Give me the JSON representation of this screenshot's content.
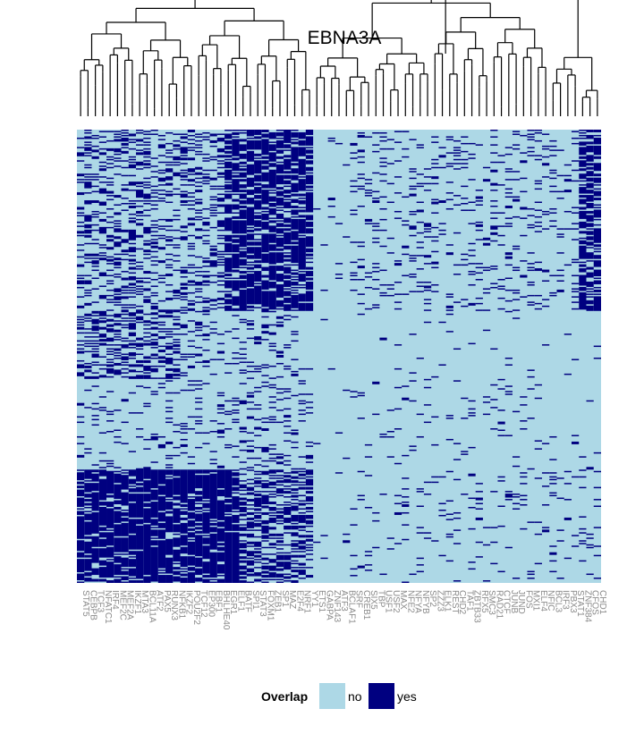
{
  "chart_data": {
    "type": "heatmap",
    "title": "EBNA3A",
    "columns": [
      "STAT5",
      "CEBPB",
      "TCF3",
      "NFATC1",
      "IRF4",
      "MEF2C",
      "MEF2A",
      "IKZF1",
      "MTA3",
      "BCL11A",
      "ATF2",
      "PAX5",
      "RUNX3",
      "NFKB1",
      "IKZF2",
      "POU2F2",
      "TCF12",
      "EP300",
      "EBF1",
      "BHLHE40",
      "EGR1",
      "ELF1",
      "BATF",
      "SPI1",
      "STAT3",
      "FOXM1",
      "ZEB1",
      "SP1",
      "MAZ",
      "E2F4",
      "NRF1",
      "YY1",
      "ETS1",
      "GABPA",
      "ZNF143",
      "ATF3",
      "BCLAF1",
      "SRF",
      "CREB1",
      "SIX5",
      "TBP",
      "USF1",
      "USF2",
      "MAX",
      "NFE2",
      "NFYA",
      "NFYB",
      "SP2",
      "ZZZ3",
      "ELK1",
      "REST",
      "CHD2",
      "TAF1",
      "ZBTB33",
      "RFX5",
      "SMC3",
      "RAD21",
      "CTCF",
      "JUNB",
      "JUND",
      "FOS",
      "MXI1",
      "ELF4",
      "NFIC",
      "BCL3",
      "IRF3",
      "PBX3",
      "STAT1",
      "ZNF384",
      "CFOS",
      "CHD1"
    ],
    "rows_count": 340,
    "value_levels": [
      "no",
      "yes"
    ],
    "colors": {
      "no": "#add8e6",
      "yes": "#000080"
    },
    "legend": {
      "title": "Overlap",
      "labels": [
        "no",
        "yes"
      ],
      "placement": "bottom"
    },
    "column_dendrogram": true
  },
  "labels": {
    "title": "EBNA3A",
    "legend_title": "Overlap",
    "legend_no": "no",
    "legend_yes": "yes"
  }
}
